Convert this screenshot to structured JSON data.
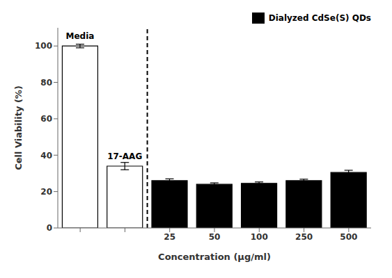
{
  "chart_data": {
    "type": "bar",
    "categories": [
      null,
      null,
      "25",
      "50",
      "100",
      "250",
      "500"
    ],
    "series": [
      {
        "values": [
          100,
          34,
          null,
          null,
          null,
          null,
          null
        ],
        "errors": [
          1.0,
          2.0,
          null,
          null,
          null,
          null,
          null
        ],
        "color": "white"
      },
      {
        "name": "Dialyzed CdSe(S) QDs",
        "values": [
          null,
          null,
          26.0,
          24.0,
          24.5,
          26.0,
          30.5
        ],
        "errors": [
          null,
          null,
          1.0,
          0.8,
          0.8,
          0.8,
          1.2
        ],
        "color": "black"
      }
    ],
    "annotations": [
      "Media",
      "17-AAG"
    ],
    "xlabel": "Concentration (μg/ml)",
    "ylabel": "Cell Viability (%)",
    "ylim": [
      0,
      110
    ],
    "yticks": [
      0,
      20,
      40,
      60,
      80,
      100
    ],
    "legend": "upper right",
    "grid": false
  }
}
